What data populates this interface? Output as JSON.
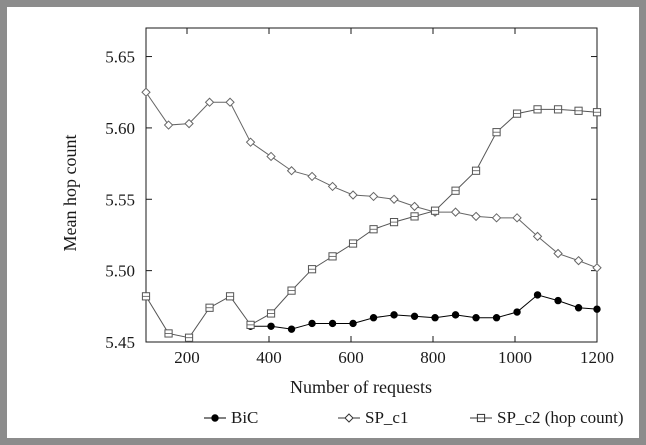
{
  "chart_data": {
    "type": "line",
    "title": "",
    "xlabel": "Number of requests",
    "ylabel": "Mean hop count",
    "xlim": [
      100,
      1200
    ],
    "ylim": [
      5.45,
      5.67
    ],
    "xticks": [
      200,
      400,
      600,
      800,
      1000,
      1200
    ],
    "xtick_labels": [
      "200",
      "400",
      "600",
      "800",
      "1000",
      "1200"
    ],
    "yticks": [
      5.45,
      5.5,
      5.55,
      5.6,
      5.65
    ],
    "ytick_labels": [
      "5.45",
      "5.50",
      "5.55",
      "5.60",
      "5.65"
    ],
    "grid": false,
    "legend_position": "bottom",
    "series": [
      {
        "name": "BiC",
        "marker": "filled-circle",
        "color": "#000000",
        "x": [
          355,
          405,
          455,
          505,
          555,
          605,
          655,
          705,
          755,
          805,
          855,
          905,
          955,
          1005,
          1055,
          1105,
          1155,
          1205
        ],
        "y": [
          5.461,
          5.461,
          5.459,
          5.463,
          5.463,
          5.463,
          5.467,
          5.469,
          5.468,
          5.467,
          5.469,
          5.467,
          5.467,
          5.471,
          5.483,
          5.479,
          5.474,
          5.473
        ]
      },
      {
        "name": "SP_c1",
        "marker": "open-diamond",
        "color": "#666666",
        "x": [
          100,
          155,
          205,
          255,
          305,
          355,
          405,
          455,
          505,
          555,
          605,
          655,
          705,
          755,
          805,
          855,
          905,
          955,
          1005,
          1055,
          1105,
          1155,
          1205
        ],
        "y": [
          5.625,
          5.602,
          5.603,
          5.618,
          5.618,
          5.59,
          5.58,
          5.57,
          5.566,
          5.559,
          5.553,
          5.552,
          5.55,
          5.545,
          5.541,
          5.541,
          5.538,
          5.537,
          5.537,
          5.524,
          5.512,
          5.507,
          5.502
        ]
      },
      {
        "name": "SP_c2 (hop count)",
        "marker": "open-square",
        "color": "#555555",
        "x": [
          100,
          155,
          205,
          255,
          305,
          355,
          405,
          455,
          505,
          555,
          605,
          655,
          705,
          755,
          805,
          855,
          905,
          955,
          1005,
          1055,
          1105,
          1155,
          1205
        ],
        "y": [
          5.482,
          5.456,
          5.453,
          5.474,
          5.482,
          5.462,
          5.47,
          5.486,
          5.501,
          5.51,
          5.519,
          5.529,
          5.534,
          5.538,
          5.542,
          5.556,
          5.57,
          5.597,
          5.61,
          5.613,
          5.613,
          5.612,
          5.611
        ]
      }
    ]
  }
}
